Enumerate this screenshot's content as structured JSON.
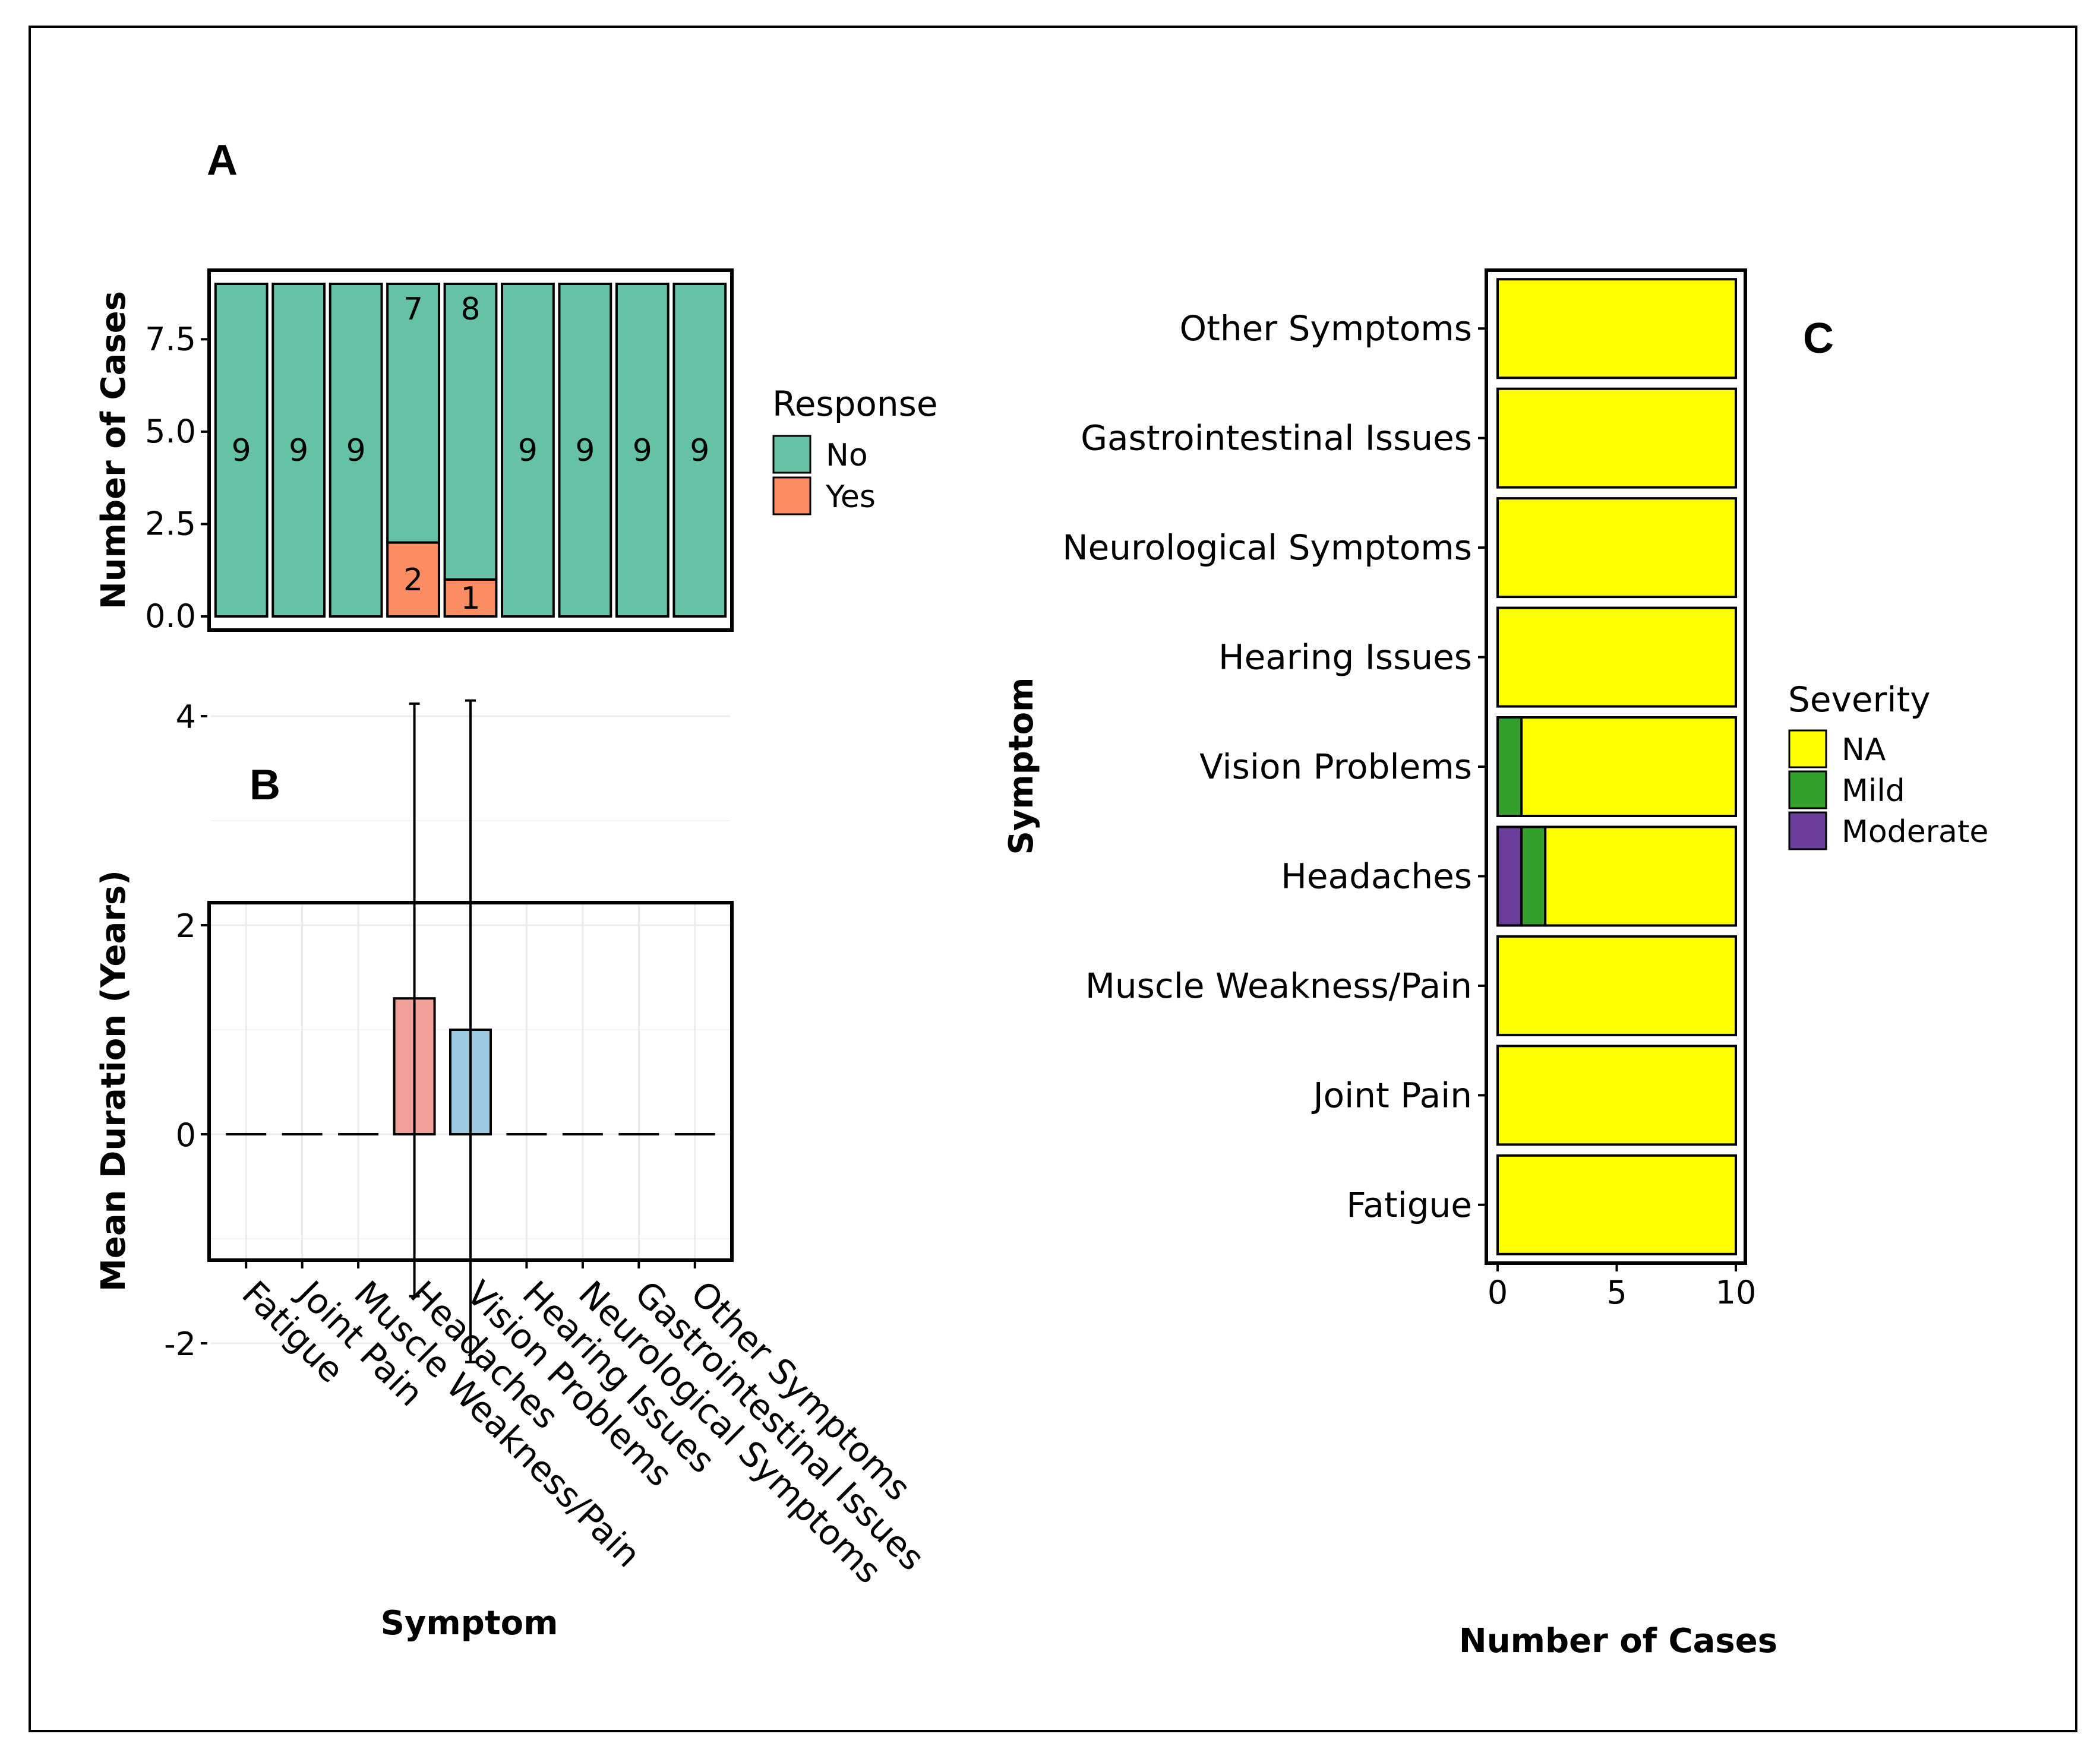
{
  "chart_data": [
    {
      "panel": "A",
      "type": "bar",
      "stacked": true,
      "ylabel": "Number of Cases",
      "xlabel": "",
      "ylim": [
        0,
        9.4
      ],
      "yticks": [
        "0.0",
        "2.5",
        "5.0",
        "7.5"
      ],
      "ytick_values": [
        0,
        2.5,
        5,
        7.5
      ],
      "categories": [
        "Fatigue",
        "Joint Pain",
        "Muscle Weakness/Pain",
        "Headaches",
        "Vision Problems",
        "Hearing Issues",
        "Neurological Symptoms",
        "Gastrointestinal Issues",
        "Other Symptoms"
      ],
      "series": [
        {
          "name": "Yes",
          "color": "#fc8d62",
          "values": [
            0,
            0,
            0,
            2,
            1,
            0,
            0,
            0,
            0
          ]
        },
        {
          "name": "No",
          "color": "#66c2a5",
          "values": [
            9,
            9,
            9,
            7,
            8,
            9,
            9,
            9,
            9
          ]
        }
      ],
      "legend": {
        "title": "Response",
        "items": [
          {
            "label": "No",
            "color": "#66c2a5"
          },
          {
            "label": "Yes",
            "color": "#fc8d62"
          }
        ]
      }
    },
    {
      "panel": "B",
      "type": "bar",
      "xlabel": "Symptom",
      "ylabel": "Mean Duration (Years)",
      "ylim": [
        -2.4,
        4.4
      ],
      "yticks": [
        "-2",
        "0",
        "2",
        "4"
      ],
      "ytick_values": [
        -2,
        0,
        2,
        4
      ],
      "categories": [
        "Fatigue",
        "Joint Pain",
        "Muscle Weakness/Pain",
        "Headaches",
        "Vision Problems",
        "Hearing Issues",
        "Neurological Symptoms",
        "Gastrointestinal Issues",
        "Other Symptoms"
      ],
      "values": [
        0,
        0,
        0,
        1.3,
        1.0,
        0,
        0,
        0,
        0
      ],
      "error_low": [
        0,
        0,
        0,
        -1.55,
        -2.18,
        0,
        0,
        0,
        0
      ],
      "error_high": [
        0,
        0,
        0,
        4.12,
        4.15,
        0,
        0,
        0,
        0
      ],
      "bar_colors": [
        "#f8766d",
        "#f8766d",
        "#f8766d",
        "#f4a09a",
        "#9ecae1",
        "#9ecae1",
        "#9ecae1",
        "#9ecae1",
        "#9ecae1"
      ]
    },
    {
      "panel": "C",
      "type": "bar",
      "orientation": "horizontal",
      "stacked": true,
      "xlabel": "Number of Cases",
      "ylabel": "Symptom",
      "xlim": [
        -0.5,
        10.5
      ],
      "xticks": [
        "0",
        "5",
        "10"
      ],
      "xtick_values": [
        0,
        5,
        10
      ],
      "categories": [
        "Other Symptoms",
        "Gastrointestinal Issues",
        "Neurological Symptoms",
        "Hearing Issues",
        "Vision Problems",
        "Headaches",
        "Muscle Weakness/Pain",
        "Joint Pain",
        "Fatigue"
      ],
      "series": [
        {
          "name": "Moderate",
          "color": "#6a3d9a",
          "values": [
            0,
            0,
            0,
            0,
            0,
            1,
            0,
            0,
            0
          ]
        },
        {
          "name": "Mild",
          "color": "#33a02c",
          "values": [
            0,
            0,
            0,
            0,
            1,
            1,
            0,
            0,
            0
          ]
        },
        {
          "name": "NA",
          "color": "#ffff00",
          "values": [
            10,
            10,
            10,
            10,
            9,
            8,
            10,
            10,
            10
          ]
        }
      ],
      "legend": {
        "title": "Severity",
        "items": [
          {
            "label": "NA",
            "color": "#ffff00"
          },
          {
            "label": "Mild",
            "color": "#33a02c"
          },
          {
            "label": "Moderate",
            "color": "#6a3d9a"
          }
        ]
      }
    }
  ],
  "panel_letters": [
    "A",
    "B",
    "C"
  ]
}
